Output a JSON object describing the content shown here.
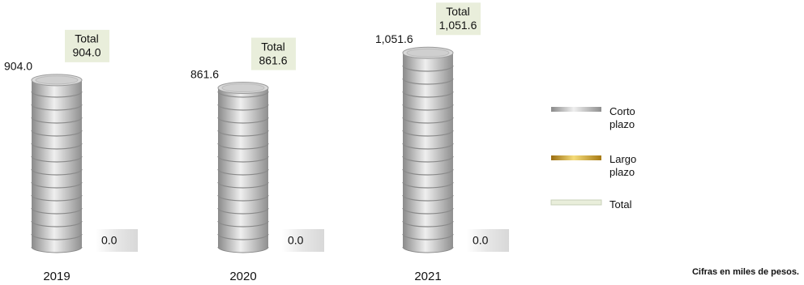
{
  "chart_data": {
    "type": "coin-stack",
    "categories": [
      "2019",
      "2020",
      "2021"
    ],
    "series": [
      {
        "name": "Corto plazo",
        "color": "#b4b4b4",
        "values": [
          904.0,
          861.6,
          1051.6
        ],
        "value_labels": [
          "904.0",
          "861.6",
          "1,051.6"
        ]
      },
      {
        "name": "Largo plazo",
        "color": "#d4a52a",
        "values": [
          0.0,
          0.0,
          0.0
        ],
        "value_labels": [
          "0.0",
          "0.0",
          "0.0"
        ]
      },
      {
        "name": "Total",
        "color": "#e9eedb",
        "values": [
          904.0,
          861.6,
          1051.6
        ],
        "value_labels": [
          "904.0",
          "861.6",
          "1,051.6"
        ]
      }
    ],
    "note": "Cifras en miles de pesos."
  }
}
